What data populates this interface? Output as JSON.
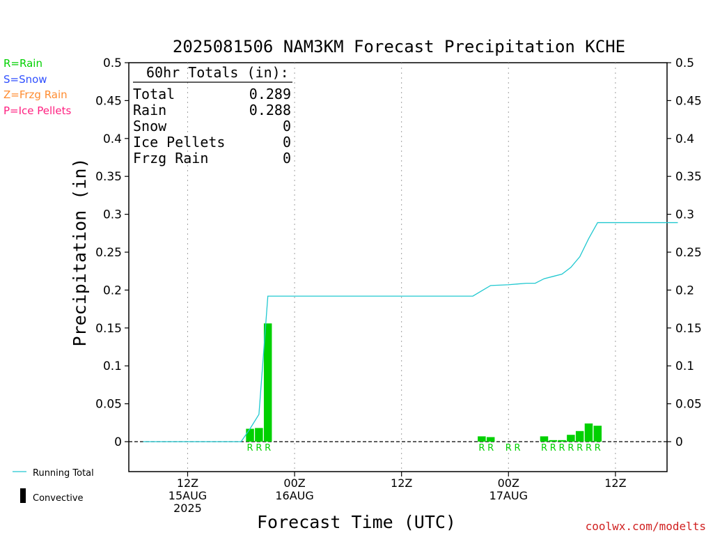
{
  "colors": {
    "rain": "#00d000",
    "snow": "#3050ff",
    "frzg_rain": "#ff8c30",
    "ice_pellets": "#ff2080",
    "running_total": "#20c8d0",
    "convective": "#000000",
    "watermark": "#d02020"
  },
  "legend": {
    "rain": "R=Rain",
    "snow": "S=Snow",
    "frzg_rain": "Z=Frzg Rain",
    "ice_pellets": "P=Ice Pellets",
    "running_total": "Running Total",
    "convective": "Convective"
  },
  "totals_box": {
    "title": "60hr Totals (in):",
    "rows": [
      {
        "label": "Total",
        "value": "0.289"
      },
      {
        "label": "Rain",
        "value": "0.288"
      },
      {
        "label": "Snow",
        "value": "0"
      },
      {
        "label": "Ice Pellets",
        "value": "0"
      },
      {
        "label": "Frzg Rain",
        "value": "0"
      }
    ]
  },
  "watermark": "coolwx.com/modelts",
  "chart_data": {
    "type": "bar",
    "title": "2025081506 NAM3KM Forecast Precipitation KCHE",
    "xlabel": "Forecast Time (UTC)",
    "ylabel": "Precipitation (in)",
    "ylim": [
      0,
      0.5
    ],
    "xlim_hours_from_start": [
      0,
      61
    ],
    "grid": "vertical dotted lines at 12Z and 00Z",
    "y_ticks": [
      "0.5",
      "0.45",
      "0.4",
      "0.35",
      "0.3",
      "0.25",
      "0.2",
      "0.15",
      "0.1",
      "0.05",
      "0"
    ],
    "x_ticks": [
      {
        "hour": 6,
        "label": [
          "12Z",
          "15AUG",
          "2025"
        ]
      },
      {
        "hour": 18,
        "label": [
          "00Z",
          "16AUG"
        ]
      },
      {
        "hour": 30,
        "label": [
          "12Z"
        ]
      },
      {
        "hour": 42,
        "label": [
          "00Z",
          "17AUG"
        ]
      },
      {
        "hour": 54,
        "label": [
          "12Z"
        ]
      }
    ],
    "precip_bars": [
      {
        "hour": 13,
        "value": 0.017,
        "type": "R"
      },
      {
        "hour": 14,
        "value": 0.018,
        "type": "R"
      },
      {
        "hour": 15,
        "value": 0.156,
        "type": "R"
      },
      {
        "hour": 39,
        "value": 0.007,
        "type": "R"
      },
      {
        "hour": 40,
        "value": 0.006,
        "type": "R"
      },
      {
        "hour": 42,
        "value": 0.0,
        "type": "R"
      },
      {
        "hour": 43,
        "value": 0.0,
        "type": "R"
      },
      {
        "hour": 46,
        "value": 0.007,
        "type": "R"
      },
      {
        "hour": 47,
        "value": 0.002,
        "type": "R"
      },
      {
        "hour": 48,
        "value": 0.002,
        "type": "R"
      },
      {
        "hour": 49,
        "value": 0.009,
        "type": "R"
      },
      {
        "hour": 50,
        "value": 0.014,
        "type": "R"
      },
      {
        "hour": 51,
        "value": 0.024,
        "type": "R"
      },
      {
        "hour": 52,
        "value": 0.021,
        "type": "R"
      }
    ],
    "running_total": {
      "name": "Running Total",
      "points": [
        [
          1,
          0
        ],
        [
          12,
          0
        ],
        [
          13,
          0.017
        ],
        [
          14,
          0.036
        ],
        [
          15,
          0.192
        ],
        [
          38,
          0.192
        ],
        [
          39,
          0.199
        ],
        [
          40,
          0.206
        ],
        [
          42,
          0.207
        ],
        [
          43,
          0.208
        ],
        [
          44,
          0.209
        ],
        [
          45,
          0.209
        ],
        [
          46,
          0.215
        ],
        [
          47,
          0.218
        ],
        [
          48,
          0.221
        ],
        [
          49,
          0.23
        ],
        [
          50,
          0.244
        ],
        [
          51,
          0.268
        ],
        [
          52,
          0.289
        ],
        [
          61,
          0.289
        ]
      ]
    }
  }
}
